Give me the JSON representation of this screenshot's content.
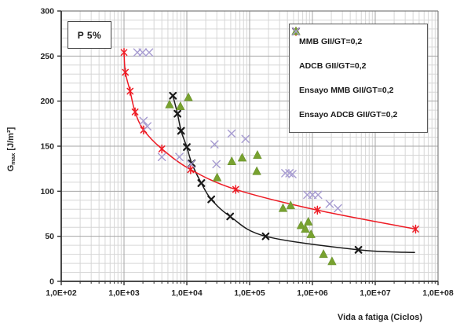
{
  "chart_data": {
    "type": "scatter",
    "title": "",
    "annotation": "P 5%",
    "xlabel": "Vida a fatiga (Ciclos)",
    "ylabel": {
      "base": "G",
      "sub": "max",
      "units": " [J/m²]"
    },
    "x_scale": "log",
    "xlim": [
      100,
      100000000
    ],
    "ylim": [
      0,
      300
    ],
    "x_tick_labels": [
      "1,0E+02",
      "1,0E+03",
      "1,0E+04",
      "1,0E+05",
      "1,0E+06",
      "1,0E+07",
      "1,0E+08"
    ],
    "y_tick_labels": [
      "0",
      "50",
      "100",
      "150",
      "200",
      "250",
      "300"
    ],
    "y_major_step": 50,
    "y_minor_step": 10,
    "grid": {
      "show": true,
      "major_color": "#a6a6a6",
      "minor_color": "#d6d6d6"
    },
    "frame_color": "#808080",
    "axis_color": "#333333",
    "tick_label_color": "#262626",
    "legend_position": "top-right",
    "series": [
      {
        "name": "MMB GII/GT=0,2",
        "marker": "x-bold",
        "color": "#1a1a1a",
        "fitted_line": true,
        "line_extension": [
          43000000,
          32
        ],
        "points": [
          [
            6000,
            206
          ],
          [
            7100,
            186
          ],
          [
            8100,
            167
          ],
          [
            10000,
            149
          ],
          [
            12000,
            131
          ],
          [
            17000,
            109
          ],
          [
            24500,
            91
          ],
          [
            49000,
            72
          ],
          [
            180000,
            50
          ],
          [
            5400000,
            35
          ]
        ]
      },
      {
        "name": "ADCB GII/GT=0,2",
        "marker": "asterisk6",
        "color": "#ee1c25",
        "fitted_line": true,
        "line_extension": null,
        "points": [
          [
            1000,
            254
          ],
          [
            1050,
            232
          ],
          [
            1250,
            211
          ],
          [
            1500,
            188
          ],
          [
            2050,
            168
          ],
          [
            4000,
            147
          ],
          [
            11500,
            124
          ],
          [
            60000,
            102
          ],
          [
            1200000,
            79
          ],
          [
            44000000,
            58
          ]
        ]
      },
      {
        "name": "Ensayo MMB GII/GT=0,2",
        "marker": "triangle",
        "color": "#78a22f",
        "fitted_line": false,
        "line_extension": null,
        "points": [
          [
            5300,
            196
          ],
          [
            7900,
            194
          ],
          [
            10600,
            204
          ],
          [
            30400,
            115
          ],
          [
            52000,
            133
          ],
          [
            76000,
            137
          ],
          [
            130000,
            122
          ],
          [
            133000,
            140
          ],
          [
            340000,
            81
          ],
          [
            450000,
            84
          ],
          [
            660000,
            62
          ],
          [
            770000,
            58
          ],
          [
            860000,
            66
          ],
          [
            950000,
            52
          ],
          [
            1500000,
            30
          ],
          [
            2050000,
            22
          ]
        ]
      },
      {
        "name": "Ensayo ADCB GII/GT=0,2",
        "marker": "x-thin",
        "color": "#a79cd1",
        "fitted_line": false,
        "line_extension": null,
        "points": [
          [
            1630,
            254
          ],
          [
            1980,
            254
          ],
          [
            2510,
            254
          ],
          [
            2040,
            178
          ],
          [
            2350,
            172
          ],
          [
            4000,
            138
          ],
          [
            7600,
            138
          ],
          [
            11700,
            130
          ],
          [
            27600,
            152
          ],
          [
            29600,
            130
          ],
          [
            51600,
            164
          ],
          [
            86000,
            158
          ],
          [
            370000,
            120
          ],
          [
            430000,
            120
          ],
          [
            480000,
            119
          ],
          [
            830000,
            96
          ],
          [
            1000000,
            96
          ],
          [
            1230000,
            96
          ],
          [
            1880000,
            86
          ],
          [
            2540000,
            81
          ]
        ]
      }
    ]
  }
}
